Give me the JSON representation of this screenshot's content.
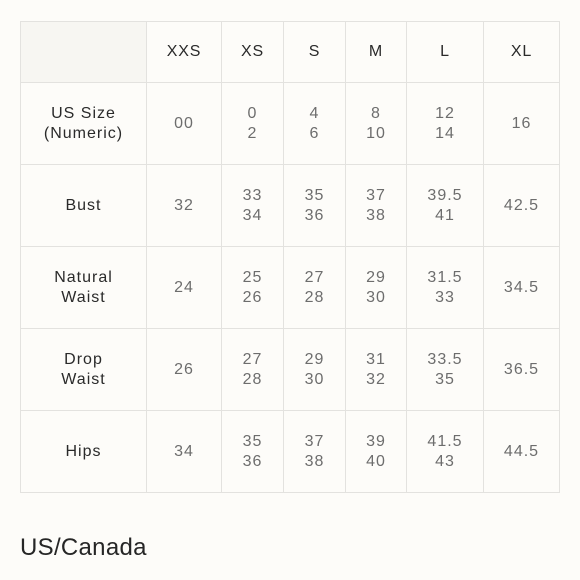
{
  "table": {
    "columns": [
      "XXS",
      "XS",
      "S",
      "M",
      "L",
      "XL"
    ],
    "rows": [
      {
        "label": [
          "US Size",
          "(Numeric)"
        ],
        "cells": [
          [
            "00"
          ],
          [
            "0",
            "2"
          ],
          [
            "4",
            "6"
          ],
          [
            "8",
            "10"
          ],
          [
            "12",
            "14"
          ],
          [
            "16"
          ]
        ]
      },
      {
        "label": [
          "Bust"
        ],
        "cells": [
          [
            "32"
          ],
          [
            "33",
            "34"
          ],
          [
            "35",
            "36"
          ],
          [
            "37",
            "38"
          ],
          [
            "39.5",
            "41"
          ],
          [
            "42.5"
          ]
        ]
      },
      {
        "label": [
          "Natural",
          "Waist"
        ],
        "cells": [
          [
            "24"
          ],
          [
            "25",
            "26"
          ],
          [
            "27",
            "28"
          ],
          [
            "29",
            "30"
          ],
          [
            "31.5",
            "33"
          ],
          [
            "34.5"
          ]
        ]
      },
      {
        "label": [
          "Drop",
          "Waist"
        ],
        "cells": [
          [
            "26"
          ],
          [
            "27",
            "28"
          ],
          [
            "29",
            "30"
          ],
          [
            "31",
            "32"
          ],
          [
            "33.5",
            "35"
          ],
          [
            "36.5"
          ]
        ]
      },
      {
        "label": [
          "Hips"
        ],
        "cells": [
          [
            "34"
          ],
          [
            "35",
            "36"
          ],
          [
            "37",
            "38"
          ],
          [
            "39",
            "40"
          ],
          [
            "41.5",
            "43"
          ],
          [
            "44.5"
          ]
        ]
      }
    ]
  },
  "caption": "US/Canada"
}
